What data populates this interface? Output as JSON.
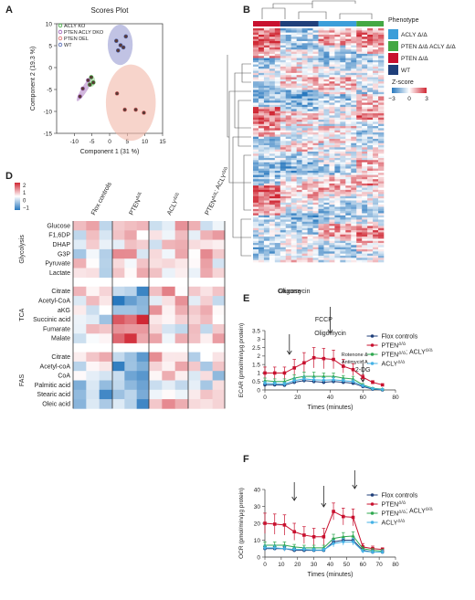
{
  "panel_letters": [
    "A",
    "B",
    "D",
    "E",
    "F"
  ],
  "chart_data": [
    {
      "panel": "A",
      "type": "scatter",
      "title": "Scores Plot",
      "xlabel": "Component 1 (31 %)",
      "ylabel": "Component 2 (19.3 %)",
      "xlim": [
        -15,
        15
      ],
      "ylim": [
        -15,
        10
      ],
      "xticks": [
        -10,
        -5,
        0,
        5,
        10,
        15
      ],
      "yticks": [
        -15,
        -10,
        -5,
        0,
        5,
        10
      ],
      "legend_position": "top-left",
      "series": [
        {
          "name": "ACLY KO",
          "color": "#3aa53a",
          "points": [
            [
              -5.2,
              -2.2
            ],
            [
              -4.6,
              -3.4
            ],
            [
              -5.6,
              -3.9
            ]
          ]
        },
        {
          "name": "PTEN ACLY DKO",
          "color": "#9a57b5",
          "points": [
            [
              -8.4,
              -6.6
            ],
            [
              -7.6,
              -4.8
            ],
            [
              -6.1,
              -2.9
            ]
          ]
        },
        {
          "name": "PTEN DEL",
          "color": "#e06b6b",
          "points": [
            [
              2.1,
              -5.9
            ],
            [
              4.3,
              -9.6
            ],
            [
              7.4,
              -9.6
            ],
            [
              9.7,
              -10.3
            ]
          ]
        },
        {
          "name": "WT",
          "color": "#4a62b0",
          "points": [
            [
              1.9,
              6.1
            ],
            [
              3.1,
              5.1
            ],
            [
              4.6,
              7.1
            ],
            [
              2.4,
              3.9
            ],
            [
              3.9,
              4.6
            ]
          ]
        }
      ]
    },
    {
      "panel": "B",
      "type": "heatmap",
      "legend_title": "Phenotype",
      "phenotypes": [
        {
          "name": "ACLY Δ/Δ",
          "color": "#3b9ed9"
        },
        {
          "name": "PTEN Δ/Δ ACLY Δ/Δ",
          "color": "#44a843"
        },
        {
          "name": "PTEN Δ/Δ",
          "color": "#c8102e"
        },
        {
          "name": "WT",
          "color": "#1f3f7a"
        }
      ],
      "column_groups": [
        "PTEN Δ/Δ",
        "WT",
        "ACLY Δ/Δ",
        "PTEN Δ/Δ ACLY Δ/Δ"
      ],
      "colorbar_title": "Z-score",
      "colorbar_ticks": [
        "−3",
        "0",
        "3"
      ]
    },
    {
      "panel": "D",
      "type": "heatmap",
      "colorbar_ticks": [
        "2",
        "1",
        "0",
        "−1"
      ],
      "columns": [
        "Flox controls",
        "PTEN^Δ/Δ",
        "ACLY^Δ/Δ",
        "PTEN^Δ/Δ; ACLY^Δ/Δ"
      ],
      "groups": [
        {
          "name": "Glycolysis",
          "rows": [
            "Glucose",
            "F1,6DP",
            "DHAP",
            "G3P",
            "Pyruvate",
            "Lactate"
          ]
        },
        {
          "name": "TCA",
          "rows": [
            "Citrate",
            "Acetyl-CoA",
            "aKG",
            "Succinic acid",
            "Fumarate",
            "Malate"
          ]
        },
        {
          "name": "FAS",
          "rows": [
            "Citrate",
            "Acetyl-coA",
            "CoA",
            "Palmitic acid",
            "Stearic acid",
            "Oleic acid"
          ]
        }
      ]
    },
    {
      "panel": "E",
      "type": "line",
      "xlabel": "Times (minutes)",
      "ylabel": "ECAR (pmol/min/μg protein)",
      "xlim": [
        0,
        80
      ],
      "ylim": [
        0,
        3.5
      ],
      "xticks": [
        0,
        20,
        40,
        60,
        80
      ],
      "yticks": [
        0,
        0.5,
        1.0,
        1.5,
        2.0,
        2.5,
        3.0,
        3.5
      ],
      "annotations": [
        {
          "text": "Glucose",
          "x": 15
        },
        {
          "text": "Oligomycin",
          "x": 40
        },
        {
          "text": "2-DG",
          "x": 60
        }
      ],
      "x": [
        0,
        6,
        12,
        18,
        24,
        30,
        36,
        42,
        48,
        54,
        60,
        66,
        72
      ],
      "series": [
        {
          "name": "Flox controls",
          "color": "#1f3f7a",
          "marker": "circle",
          "values": [
            0.3,
            0.3,
            0.28,
            0.45,
            0.55,
            0.5,
            0.45,
            0.5,
            0.45,
            0.4,
            0.2,
            0.05,
            0.0
          ],
          "err": [
            0.05,
            0.05,
            0.05,
            0.08,
            0.1,
            0.1,
            0.1,
            0.1,
            0.08,
            0.08,
            0.05,
            0.03,
            0.02
          ]
        },
        {
          "name": "PTEN^Δ/Δ",
          "color": "#c8102e",
          "marker": "square",
          "values": [
            1.0,
            1.0,
            1.0,
            1.3,
            1.6,
            1.9,
            1.85,
            1.8,
            1.4,
            1.2,
            0.75,
            0.45,
            0.3
          ],
          "err": [
            0.35,
            0.35,
            0.35,
            0.5,
            0.6,
            0.6,
            0.6,
            0.55,
            0.4,
            0.35,
            0.15,
            0.1,
            0.05
          ]
        },
        {
          "name": "PTEN^Δ/Δ; ACLY^Δ/Δ",
          "color": "#2fa84f",
          "marker": "triangle",
          "values": [
            0.55,
            0.5,
            0.5,
            0.7,
            0.8,
            0.8,
            0.8,
            0.8,
            0.7,
            0.65,
            0.3,
            0.1,
            0.05
          ],
          "err": [
            0.15,
            0.15,
            0.15,
            0.2,
            0.25,
            0.25,
            0.2,
            0.2,
            0.15,
            0.15,
            0.08,
            0.04,
            0.03
          ]
        },
        {
          "name": "ACLY^Δ/Δ",
          "color": "#45b2e6",
          "marker": "diamond",
          "values": [
            0.4,
            0.38,
            0.35,
            0.55,
            0.65,
            0.6,
            0.58,
            0.6,
            0.55,
            0.5,
            0.25,
            0.08,
            0.03
          ],
          "err": [
            0.1,
            0.1,
            0.1,
            0.15,
            0.15,
            0.15,
            0.15,
            0.15,
            0.1,
            0.1,
            0.06,
            0.03,
            0.02
          ]
        }
      ]
    },
    {
      "panel": "F",
      "type": "line",
      "xlabel": "Times (minutes)",
      "ylabel": "OCR (pmol/min/μg protein)",
      "xlim": [
        0,
        80
      ],
      "ylim": [
        0,
        40
      ],
      "xticks": [
        0,
        10,
        20,
        30,
        40,
        50,
        60,
        70,
        80
      ],
      "yticks": [
        0,
        10,
        20,
        30,
        40
      ],
      "annotations": [
        {
          "text": "Oligomycin",
          "x": 18
        },
        {
          "text": "FCCP",
          "x": 36
        },
        {
          "text": "Rotenone & Antimycin A",
          "x": 55
        }
      ],
      "x": [
        0,
        6,
        12,
        18,
        24,
        30,
        36,
        42,
        48,
        54,
        60,
        66,
        72
      ],
      "series": [
        {
          "name": "Flox controls",
          "color": "#1f3f7a",
          "marker": "circle",
          "values": [
            5,
            5,
            5,
            4,
            4,
            4,
            4,
            9,
            10,
            10,
            4,
            3,
            3
          ],
          "err": [
            1,
            1,
            1,
            1,
            1,
            1,
            1,
            2,
            2,
            2,
            1,
            1,
            1
          ]
        },
        {
          "name": "PTEN^Δ/Δ",
          "color": "#c8102e",
          "marker": "square",
          "values": [
            20,
            19.5,
            19,
            15,
            13,
            12,
            12,
            27,
            24,
            23.5,
            6,
            5,
            4.5
          ],
          "err": [
            6,
            6,
            6,
            5,
            5,
            5,
            5,
            5,
            5,
            5,
            2,
            1.5,
            1
          ]
        },
        {
          "name": "PTEN^Δ/Δ; ACLY^Δ/Δ",
          "color": "#2fa84f",
          "marker": "triangle",
          "values": [
            7,
            7,
            7,
            6,
            5.5,
            5.5,
            5.5,
            11,
            12,
            12.5,
            5,
            4,
            3.5
          ],
          "err": [
            2,
            2,
            2,
            1.5,
            1.5,
            1.5,
            1.5,
            2.5,
            2.5,
            2.5,
            1,
            1,
            1
          ]
        },
        {
          "name": "ACLY^Δ/Δ",
          "color": "#45b2e6",
          "marker": "diamond",
          "values": [
            5.5,
            5.5,
            5,
            4.5,
            4.5,
            4.2,
            4.2,
            8,
            9,
            9,
            3.5,
            3,
            3
          ],
          "err": [
            1.5,
            1.5,
            1.5,
            1,
            1,
            1,
            1,
            2,
            2,
            2,
            1,
            1,
            1
          ]
        }
      ]
    }
  ]
}
